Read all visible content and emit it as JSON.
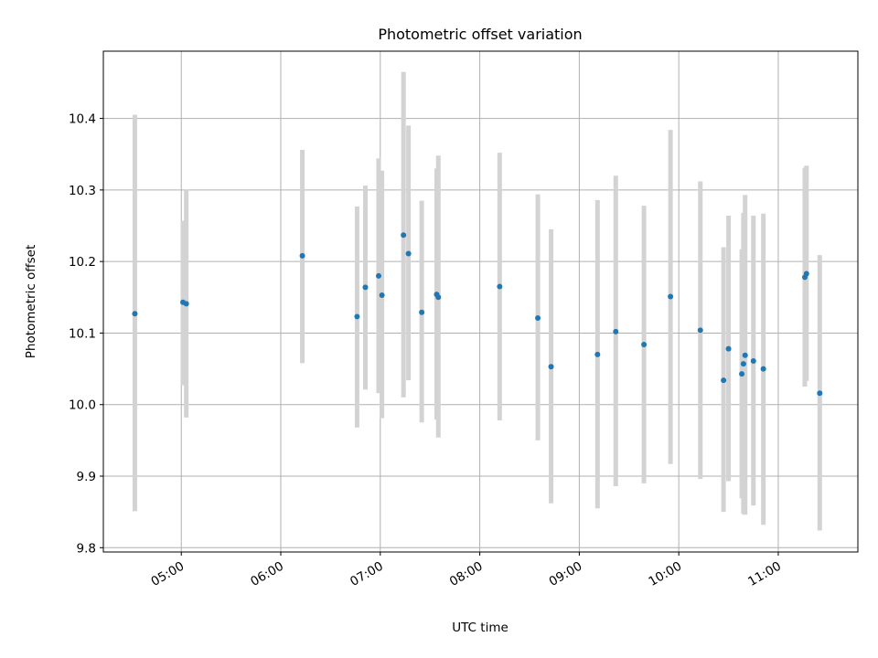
{
  "chart_data": {
    "type": "scatter",
    "title": "Photometric offset variation",
    "xlabel": "UTC time",
    "ylabel": "Photometric offset",
    "x_tick_labels": [
      "05:00",
      "06:00",
      "07:00",
      "08:00",
      "09:00",
      "10:00",
      "11:00"
    ],
    "y_tick_labels": [
      "9.8",
      "9.9",
      "10.0",
      "10.1",
      "10.2",
      "10.3",
      "10.4"
    ],
    "y_ticks": [
      9.8,
      9.9,
      10.0,
      10.1,
      10.2,
      10.3,
      10.4
    ],
    "xlim": [
      "04:13",
      "11:48"
    ],
    "ylim": [
      9.794,
      10.494
    ],
    "grid": true,
    "colors": {
      "point": "#1f77b4",
      "errorbar": "#d3d3d3",
      "grid": "#b0b0b0"
    },
    "points": [
      {
        "x": "04:32",
        "y": 10.127,
        "ylow": 9.851,
        "yhigh": 10.405
      },
      {
        "x": "05:01",
        "y": 10.143,
        "ylow": 10.027,
        "yhigh": 10.257
      },
      {
        "x": "05:03",
        "y": 10.141,
        "ylow": 9.982,
        "yhigh": 10.301
      },
      {
        "x": "06:13",
        "y": 10.208,
        "ylow": 10.058,
        "yhigh": 10.356
      },
      {
        "x": "06:46",
        "y": 10.123,
        "ylow": 9.968,
        "yhigh": 10.277
      },
      {
        "x": "06:51",
        "y": 10.164,
        "ylow": 10.021,
        "yhigh": 10.306
      },
      {
        "x": "06:59",
        "y": 10.18,
        "ylow": 10.016,
        "yhigh": 10.344
      },
      {
        "x": "07:01",
        "y": 10.153,
        "ylow": 9.981,
        "yhigh": 10.327
      },
      {
        "x": "07:14",
        "y": 10.237,
        "ylow": 10.01,
        "yhigh": 10.465
      },
      {
        "x": "07:17",
        "y": 10.211,
        "ylow": 10.034,
        "yhigh": 10.39
      },
      {
        "x": "07:25",
        "y": 10.129,
        "ylow": 9.975,
        "yhigh": 10.285
      },
      {
        "x": "07:34",
        "y": 10.154,
        "ylow": 9.979,
        "yhigh": 10.33
      },
      {
        "x": "07:35",
        "y": 10.15,
        "ylow": 9.954,
        "yhigh": 10.348
      },
      {
        "x": "08:12",
        "y": 10.165,
        "ylow": 9.978,
        "yhigh": 10.352
      },
      {
        "x": "08:35",
        "y": 10.121,
        "ylow": 9.95,
        "yhigh": 10.294
      },
      {
        "x": "08:43",
        "y": 10.053,
        "ylow": 9.862,
        "yhigh": 10.245
      },
      {
        "x": "09:11",
        "y": 10.07,
        "ylow": 9.855,
        "yhigh": 10.286
      },
      {
        "x": "09:22",
        "y": 10.102,
        "ylow": 9.886,
        "yhigh": 10.32
      },
      {
        "x": "09:39",
        "y": 10.084,
        "ylow": 9.89,
        "yhigh": 10.278
      },
      {
        "x": "09:55",
        "y": 10.151,
        "ylow": 9.917,
        "yhigh": 10.384
      },
      {
        "x": "10:13",
        "y": 10.104,
        "ylow": 9.896,
        "yhigh": 10.312
      },
      {
        "x": "10:27",
        "y": 10.034,
        "ylow": 9.85,
        "yhigh": 10.22
      },
      {
        "x": "10:30",
        "y": 10.078,
        "ylow": 9.893,
        "yhigh": 10.264
      },
      {
        "x": "10:38",
        "y": 10.043,
        "ylow": 9.869,
        "yhigh": 10.217
      },
      {
        "x": "10:39",
        "y": 10.057,
        "ylow": 9.847,
        "yhigh": 10.268
      },
      {
        "x": "10:40",
        "y": 10.069,
        "ylow": 9.846,
        "yhigh": 10.293
      },
      {
        "x": "10:45",
        "y": 10.061,
        "ylow": 9.859,
        "yhigh": 10.264
      },
      {
        "x": "10:51",
        "y": 10.05,
        "ylow": 9.832,
        "yhigh": 10.267
      },
      {
        "x": "11:16",
        "y": 10.178,
        "ylow": 10.025,
        "yhigh": 10.331
      },
      {
        "x": "11:17",
        "y": 10.183,
        "ylow": 10.033,
        "yhigh": 10.334
      },
      {
        "x": "11:25",
        "y": 10.016,
        "ylow": 9.824,
        "yhigh": 10.209
      }
    ]
  }
}
